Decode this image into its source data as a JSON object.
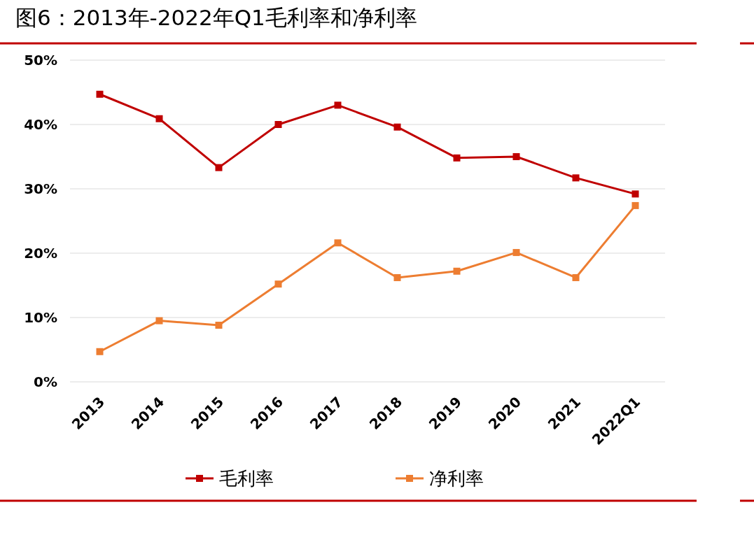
{
  "chart_data": {
    "type": "line",
    "title": "图6：2013年-2022年Q1毛利率和净利率",
    "categories": [
      "2013",
      "2014",
      "2015",
      "2016",
      "2017",
      "2018",
      "2019",
      "2020",
      "2021",
      "2022Q1"
    ],
    "series": [
      {
        "name": "毛利率",
        "color": "#c00000",
        "values": [
          44.7,
          40.9,
          33.3,
          40.0,
          43.0,
          39.6,
          34.8,
          35.0,
          31.7,
          29.2
        ]
      },
      {
        "name": "净利率",
        "color": "#ed7d31",
        "values": [
          4.7,
          9.5,
          8.8,
          15.2,
          21.6,
          16.2,
          17.2,
          20.1,
          16.2,
          27.4
        ]
      }
    ],
    "ylim": [
      0,
      50
    ],
    "yticks": [
      {
        "value": 0,
        "label": "0%"
      },
      {
        "value": 10,
        "label": "10%"
      },
      {
        "value": 20,
        "label": "20%"
      },
      {
        "value": 30,
        "label": "30%"
      },
      {
        "value": 40,
        "label": "40%"
      },
      {
        "value": 50,
        "label": "50%"
      }
    ],
    "grid": "y",
    "legend": "bottom",
    "marker": "square"
  }
}
